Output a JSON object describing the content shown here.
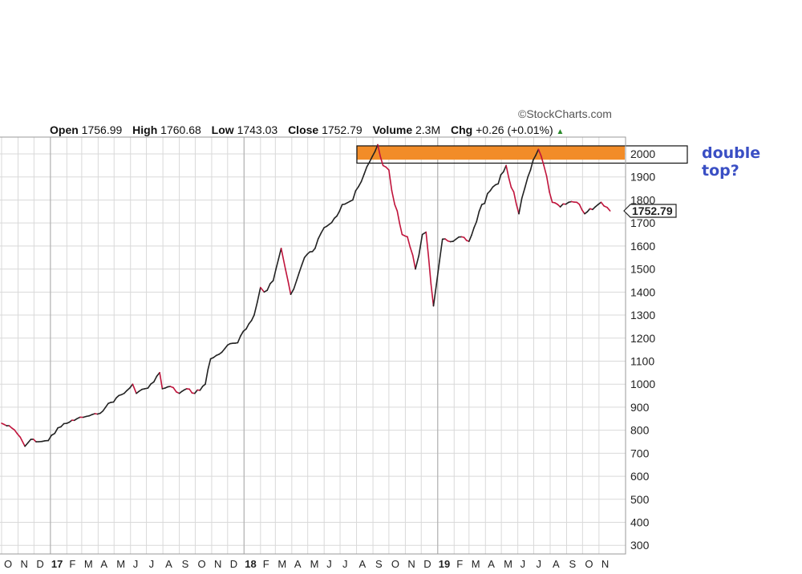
{
  "brand": "StockCharts.com",
  "quote": {
    "open_label": "Open",
    "open": "1756.99",
    "high_label": "High",
    "high": "1760.68",
    "low_label": "Low",
    "low": "1743.03",
    "close_label": "Close",
    "close": "1752.79",
    "volume_label": "Volume",
    "volume": "2.3M",
    "chg_label": "Chg",
    "chg": "+0.26 (+0.01%)"
  },
  "annotation": {
    "text": "double top?",
    "color": "#3a4fc4",
    "zone_color": "#f28c28",
    "zone_range": [
      1975,
      2035
    ]
  },
  "colors": {
    "up": "#222222",
    "down": "#c0143c",
    "grid": "#d9d9d9"
  },
  "chart_data": {
    "type": "line",
    "title": "",
    "xlabel": "",
    "ylabel": "",
    "ylim": [
      250,
      2050
    ],
    "y_ticks": [
      300,
      400,
      500,
      600,
      700,
      800,
      900,
      1000,
      1100,
      1200,
      1300,
      1400,
      1500,
      1600,
      1700,
      1800,
      1900,
      2000
    ],
    "y_tick_labels": [
      "300",
      "400",
      "500",
      "600",
      "700",
      "800",
      "900",
      "1000",
      "1100",
      "1200",
      "1300",
      "1400",
      "1500",
      "1600",
      "1700",
      "1800",
      "1900",
      "2000"
    ],
    "x_ticks": [
      {
        "month": "2016-10",
        "label": "O",
        "bold": false
      },
      {
        "month": "2016-11",
        "label": "N",
        "bold": false
      },
      {
        "month": "2016-12",
        "label": "D",
        "bold": false
      },
      {
        "month": "2017-01",
        "label": "17",
        "bold": true
      },
      {
        "month": "2017-02",
        "label": "F",
        "bold": false
      },
      {
        "month": "2017-03",
        "label": "M",
        "bold": false
      },
      {
        "month": "2017-04",
        "label": "A",
        "bold": false
      },
      {
        "month": "2017-05",
        "label": "M",
        "bold": false
      },
      {
        "month": "2017-06",
        "label": "J",
        "bold": false
      },
      {
        "month": "2017-07",
        "label": "J",
        "bold": false
      },
      {
        "month": "2017-08",
        "label": "A",
        "bold": false
      },
      {
        "month": "2017-09",
        "label": "S",
        "bold": false
      },
      {
        "month": "2017-10",
        "label": "O",
        "bold": false
      },
      {
        "month": "2017-11",
        "label": "N",
        "bold": false
      },
      {
        "month": "2017-12",
        "label": "D",
        "bold": false
      },
      {
        "month": "2018-01",
        "label": "18",
        "bold": true
      },
      {
        "month": "2018-02",
        "label": "F",
        "bold": false
      },
      {
        "month": "2018-03",
        "label": "M",
        "bold": false
      },
      {
        "month": "2018-04",
        "label": "A",
        "bold": false
      },
      {
        "month": "2018-05",
        "label": "M",
        "bold": false
      },
      {
        "month": "2018-06",
        "label": "J",
        "bold": false
      },
      {
        "month": "2018-07",
        "label": "J",
        "bold": false
      },
      {
        "month": "2018-08",
        "label": "A",
        "bold": false
      },
      {
        "month": "2018-09",
        "label": "S",
        "bold": false
      },
      {
        "month": "2018-10",
        "label": "O",
        "bold": false
      },
      {
        "month": "2018-11",
        "label": "N",
        "bold": false
      },
      {
        "month": "2018-12",
        "label": "D",
        "bold": false
      },
      {
        "month": "2019-01",
        "label": "19",
        "bold": true
      },
      {
        "month": "2019-02",
        "label": "F",
        "bold": false
      },
      {
        "month": "2019-03",
        "label": "M",
        "bold": false
      },
      {
        "month": "2019-04",
        "label": "A",
        "bold": false
      },
      {
        "month": "2019-05",
        "label": "M",
        "bold": false
      },
      {
        "month": "2019-06",
        "label": "J",
        "bold": false
      },
      {
        "month": "2019-07",
        "label": "J",
        "bold": false
      },
      {
        "month": "2019-08",
        "label": "A",
        "bold": false
      },
      {
        "month": "2019-09",
        "label": "S",
        "bold": false
      },
      {
        "month": "2019-10",
        "label": "O",
        "bold": false
      },
      {
        "month": "2019-11",
        "label": "N",
        "bold": false
      }
    ],
    "last_value_label": "1752.79",
    "series": [
      {
        "x": [
          "2016-10-01",
          "2016-10-20",
          "2016-11-05",
          "2016-11-14",
          "2016-11-25",
          "2016-12-10",
          "2016-12-28",
          "2017-01-15",
          "2017-02-01",
          "2017-02-20",
          "2017-03-10",
          "2017-03-31",
          "2017-04-15",
          "2017-05-05",
          "2017-05-20",
          "2017-06-05",
          "2017-06-12",
          "2017-06-28",
          "2017-07-15",
          "2017-07-26",
          "2017-07-31",
          "2017-08-15",
          "2017-09-01",
          "2017-09-15",
          "2017-09-30",
          "2017-10-20",
          "2017-10-30",
          "2017-11-15",
          "2017-12-01",
          "2017-12-20",
          "2018-01-05",
          "2018-01-20",
          "2018-02-01",
          "2018-02-08",
          "2018-02-25",
          "2018-03-12",
          "2018-03-20",
          "2018-03-30",
          "2018-04-10",
          "2018-04-25",
          "2018-05-15",
          "2018-06-01",
          "2018-06-20",
          "2018-07-05",
          "2018-07-25",
          "2018-08-10",
          "2018-08-31",
          "2018-09-10",
          "2018-09-20",
          "2018-10-01",
          "2018-10-12",
          "2018-10-26",
          "2018-11-05",
          "2018-11-20",
          "2018-12-03",
          "2018-12-10",
          "2018-12-24",
          "2019-01-10",
          "2019-01-30",
          "2019-02-15",
          "2019-03-01",
          "2019-03-20",
          "2019-04-10",
          "2019-04-25",
          "2019-05-10",
          "2019-06-03",
          "2019-06-20",
          "2019-07-10",
          "2019-07-20",
          "2019-08-05",
          "2019-08-20",
          "2019-09-05",
          "2019-09-20",
          "2019-10-05",
          "2019-10-25",
          "2019-11-05",
          "2019-11-22"
        ],
        "y": [
          830,
          810,
          770,
          730,
          760,
          750,
          755,
          810,
          830,
          850,
          860,
          870,
          900,
          940,
          960,
          1000,
          960,
          980,
          1010,
          1050,
          980,
          990,
          960,
          980,
          960,
          1000,
          1110,
          1130,
          1170,
          1180,
          1240,
          1300,
          1420,
          1400,
          1450,
          1590,
          1500,
          1390,
          1450,
          1550,
          1590,
          1680,
          1720,
          1780,
          1800,
          1880,
          1990,
          2040,
          1950,
          1930,
          1780,
          1650,
          1640,
          1500,
          1650,
          1660,
          1340,
          1630,
          1620,
          1640,
          1620,
          1750,
          1840,
          1870,
          1950,
          1740,
          1900,
          2020,
          1950,
          1790,
          1770,
          1790,
          1790,
          1740,
          1770,
          1790,
          1752.79
        ]
      }
    ]
  }
}
